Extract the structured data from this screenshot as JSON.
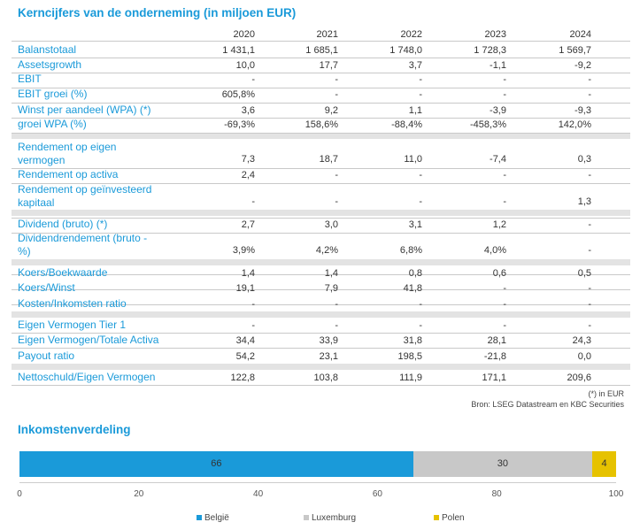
{
  "table": {
    "title": "Kerncijfers van de onderneming (in miljoen EUR)",
    "years": [
      "2020",
      "2021",
      "2022",
      "2023",
      "2024"
    ],
    "rows": [
      {
        "label": "Balanstotaal",
        "values": [
          "1 431,1",
          "1 685,1",
          "1 748,0",
          "1 728,3",
          "1 569,7"
        ]
      },
      {
        "label": "Assetsgrowth",
        "values": [
          "10,0",
          "17,7",
          "3,7",
          "-1,1",
          "-9,2"
        ]
      },
      {
        "label": "EBIT",
        "values": [
          "-",
          "-",
          "-",
          "-",
          "-"
        ]
      },
      {
        "label": "EBIT groei (%)",
        "values": [
          "605,8%",
          "-",
          "-",
          "-",
          "-"
        ]
      },
      {
        "label": "Winst per aandeel (WPA) (*)",
        "values": [
          "3,6",
          "9,2",
          "1,1",
          "-3,9",
          "-9,3"
        ]
      },
      {
        "label": "groei WPA (%)",
        "values": [
          "-69,3%",
          "158,6%",
          "-88,4%",
          "-458,3%",
          "142,0%"
        ]
      },
      {
        "label": "Rendement op eigen vermogen",
        "values": [
          "7,3",
          "18,7",
          "11,0",
          "-7,4",
          "0,3"
        ]
      },
      {
        "label": "Rendement op activa",
        "values": [
          "2,4",
          "-",
          "-",
          "-",
          "-"
        ]
      },
      {
        "label": "Rendement op geïnvesteerd kapitaal",
        "values": [
          "-",
          "-",
          "-",
          "-",
          "1,3"
        ]
      },
      {
        "label": "Dividend (bruto) (*)",
        "values": [
          "2,7",
          "3,0",
          "3,1",
          "1,2",
          "-"
        ]
      },
      {
        "label": "Dividendrendement (bruto - %)",
        "values": [
          "3,9%",
          "4,2%",
          "6,8%",
          "4,0%",
          "-"
        ]
      },
      {
        "label": "Koers/Boekwaarde",
        "values": [
          "1,4",
          "1,4",
          "0,8",
          "0,6",
          "0,5"
        ]
      },
      {
        "label": "Koers/Winst",
        "values": [
          "19,1",
          "7,9",
          "41,8",
          "-",
          "-"
        ]
      },
      {
        "label": "Kosten/Inkomsten ratio",
        "values": [
          "-",
          "-",
          "-",
          "-",
          "-"
        ]
      },
      {
        "label": "Eigen Vermogen Tier 1",
        "values": [
          "-",
          "-",
          "-",
          "-",
          "-"
        ]
      },
      {
        "label": "Eigen Vermogen/Totale Activa",
        "values": [
          "34,4",
          "33,9",
          "31,8",
          "28,1",
          "24,3"
        ]
      },
      {
        "label": "Payout ratio",
        "values": [
          "54,2",
          "23,1",
          "198,5",
          "-21,8",
          "0,0"
        ]
      },
      {
        "label": "Nettoschuld/Eigen Vermogen",
        "values": [
          "122,8",
          "103,8",
          "111,9",
          "171,1",
          "209,6"
        ]
      }
    ],
    "footnote1": "(*) in EUR",
    "footnote2": "Bron: LSEG Datastream en KBC Securities"
  },
  "chart_data": {
    "type": "bar",
    "title": "Inkomstenverdeling",
    "stacked": true,
    "orientation": "horizontal",
    "xlim": [
      0,
      100
    ],
    "ticks": [
      "0",
      "20",
      "40",
      "60",
      "80",
      "100"
    ],
    "series": [
      {
        "name": "België",
        "values": [
          66
        ],
        "color": "#1a9ad9"
      },
      {
        "name": "Luxemburg",
        "values": [
          30
        ],
        "color": "#c8c8c8"
      },
      {
        "name": "Polen",
        "values": [
          4
        ],
        "color": "#e6c200"
      }
    ],
    "legend_position": "bottom"
  }
}
